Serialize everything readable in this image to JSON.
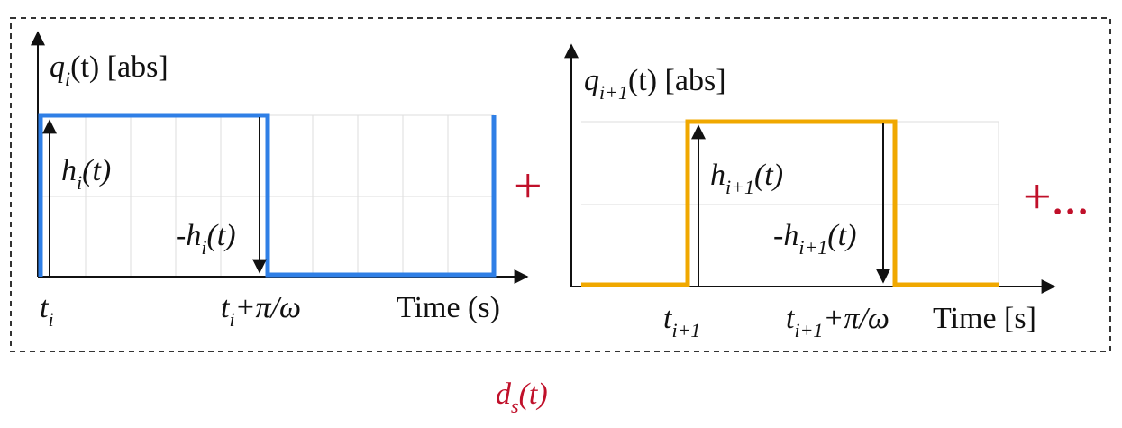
{
  "panels": [
    {
      "y_label": {
        "base": "q",
        "sub": "i",
        "tail": "(t) [abs]"
      },
      "up_label": {
        "base": "h",
        "sub": "i",
        "tail": "(t)"
      },
      "down_label": {
        "prefix": "-",
        "base": "h",
        "sub": "i",
        "tail": "(t)"
      },
      "start_label": {
        "base": "t",
        "sub": "i"
      },
      "end_label": {
        "base": "t",
        "sub": "i",
        "tail": "+π/ω"
      },
      "x_label": "Time (s)"
    },
    {
      "y_label": {
        "base": "q",
        "sub": "i+1",
        "tail": "(t) [abs]"
      },
      "up_label": {
        "base": "h",
        "sub": "i+1",
        "tail": "(t)"
      },
      "down_label": {
        "prefix": "-",
        "base": "h",
        "sub": "i+1",
        "tail": "(t)"
      },
      "start_label": {
        "base": "t",
        "sub": "i+1"
      },
      "end_label": {
        "base": "t",
        "sub": "i+1",
        "tail": "+π/ω"
      },
      "x_label": "Time [s]"
    }
  ],
  "operators": [
    "+",
    "+..."
  ],
  "caption": {
    "base": "d",
    "sub": "s",
    "tail": "(t)"
  }
}
